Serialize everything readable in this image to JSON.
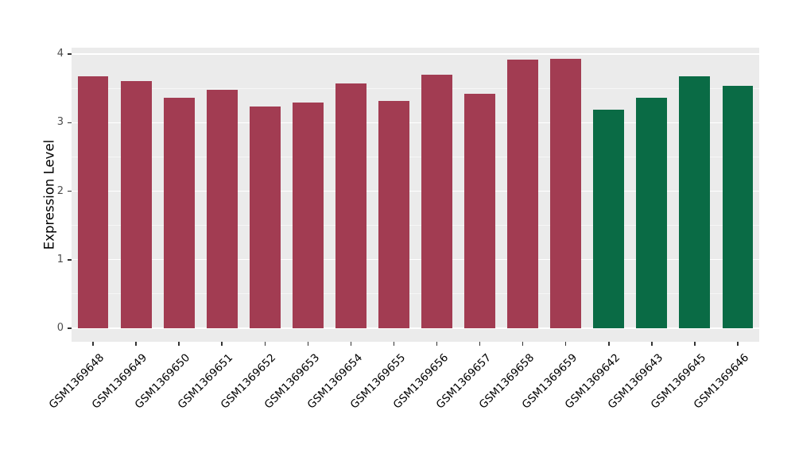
{
  "chart_data": {
    "type": "bar",
    "title": "",
    "xlabel": "",
    "ylabel": "Expression Level",
    "categories": [
      "GSM1369648",
      "GSM1369649",
      "GSM1369650",
      "GSM1369651",
      "GSM1369652",
      "GSM1369653",
      "GSM1369654",
      "GSM1369655",
      "GSM1369656",
      "GSM1369657",
      "GSM1369658",
      "GSM1369659",
      "GSM1369642",
      "GSM1369643",
      "GSM1369645",
      "GSM1369646"
    ],
    "values": [
      3.67,
      3.61,
      3.36,
      3.48,
      3.23,
      3.29,
      3.57,
      3.32,
      3.7,
      3.42,
      3.92,
      3.93,
      3.19,
      3.36,
      3.67,
      3.54
    ],
    "groups": [
      "group1",
      "group1",
      "group1",
      "group1",
      "group1",
      "group1",
      "group1",
      "group1",
      "group1",
      "group1",
      "group1",
      "group1",
      "group2",
      "group2",
      "group2",
      "group2"
    ],
    "group_colors": {
      "group1": "#A23C52",
      "group2": "#0A6B45"
    },
    "ylim": [
      0,
      4
    ],
    "yticks": [
      "0",
      "1",
      "2",
      "3",
      "4"
    ],
    "grid": "on",
    "legend": "none",
    "panel_background": "#EBEBEB",
    "gridline_color": "#FFFFFF",
    "axis_text_color": "#4d4d4d",
    "tick_color": "#333333"
  }
}
